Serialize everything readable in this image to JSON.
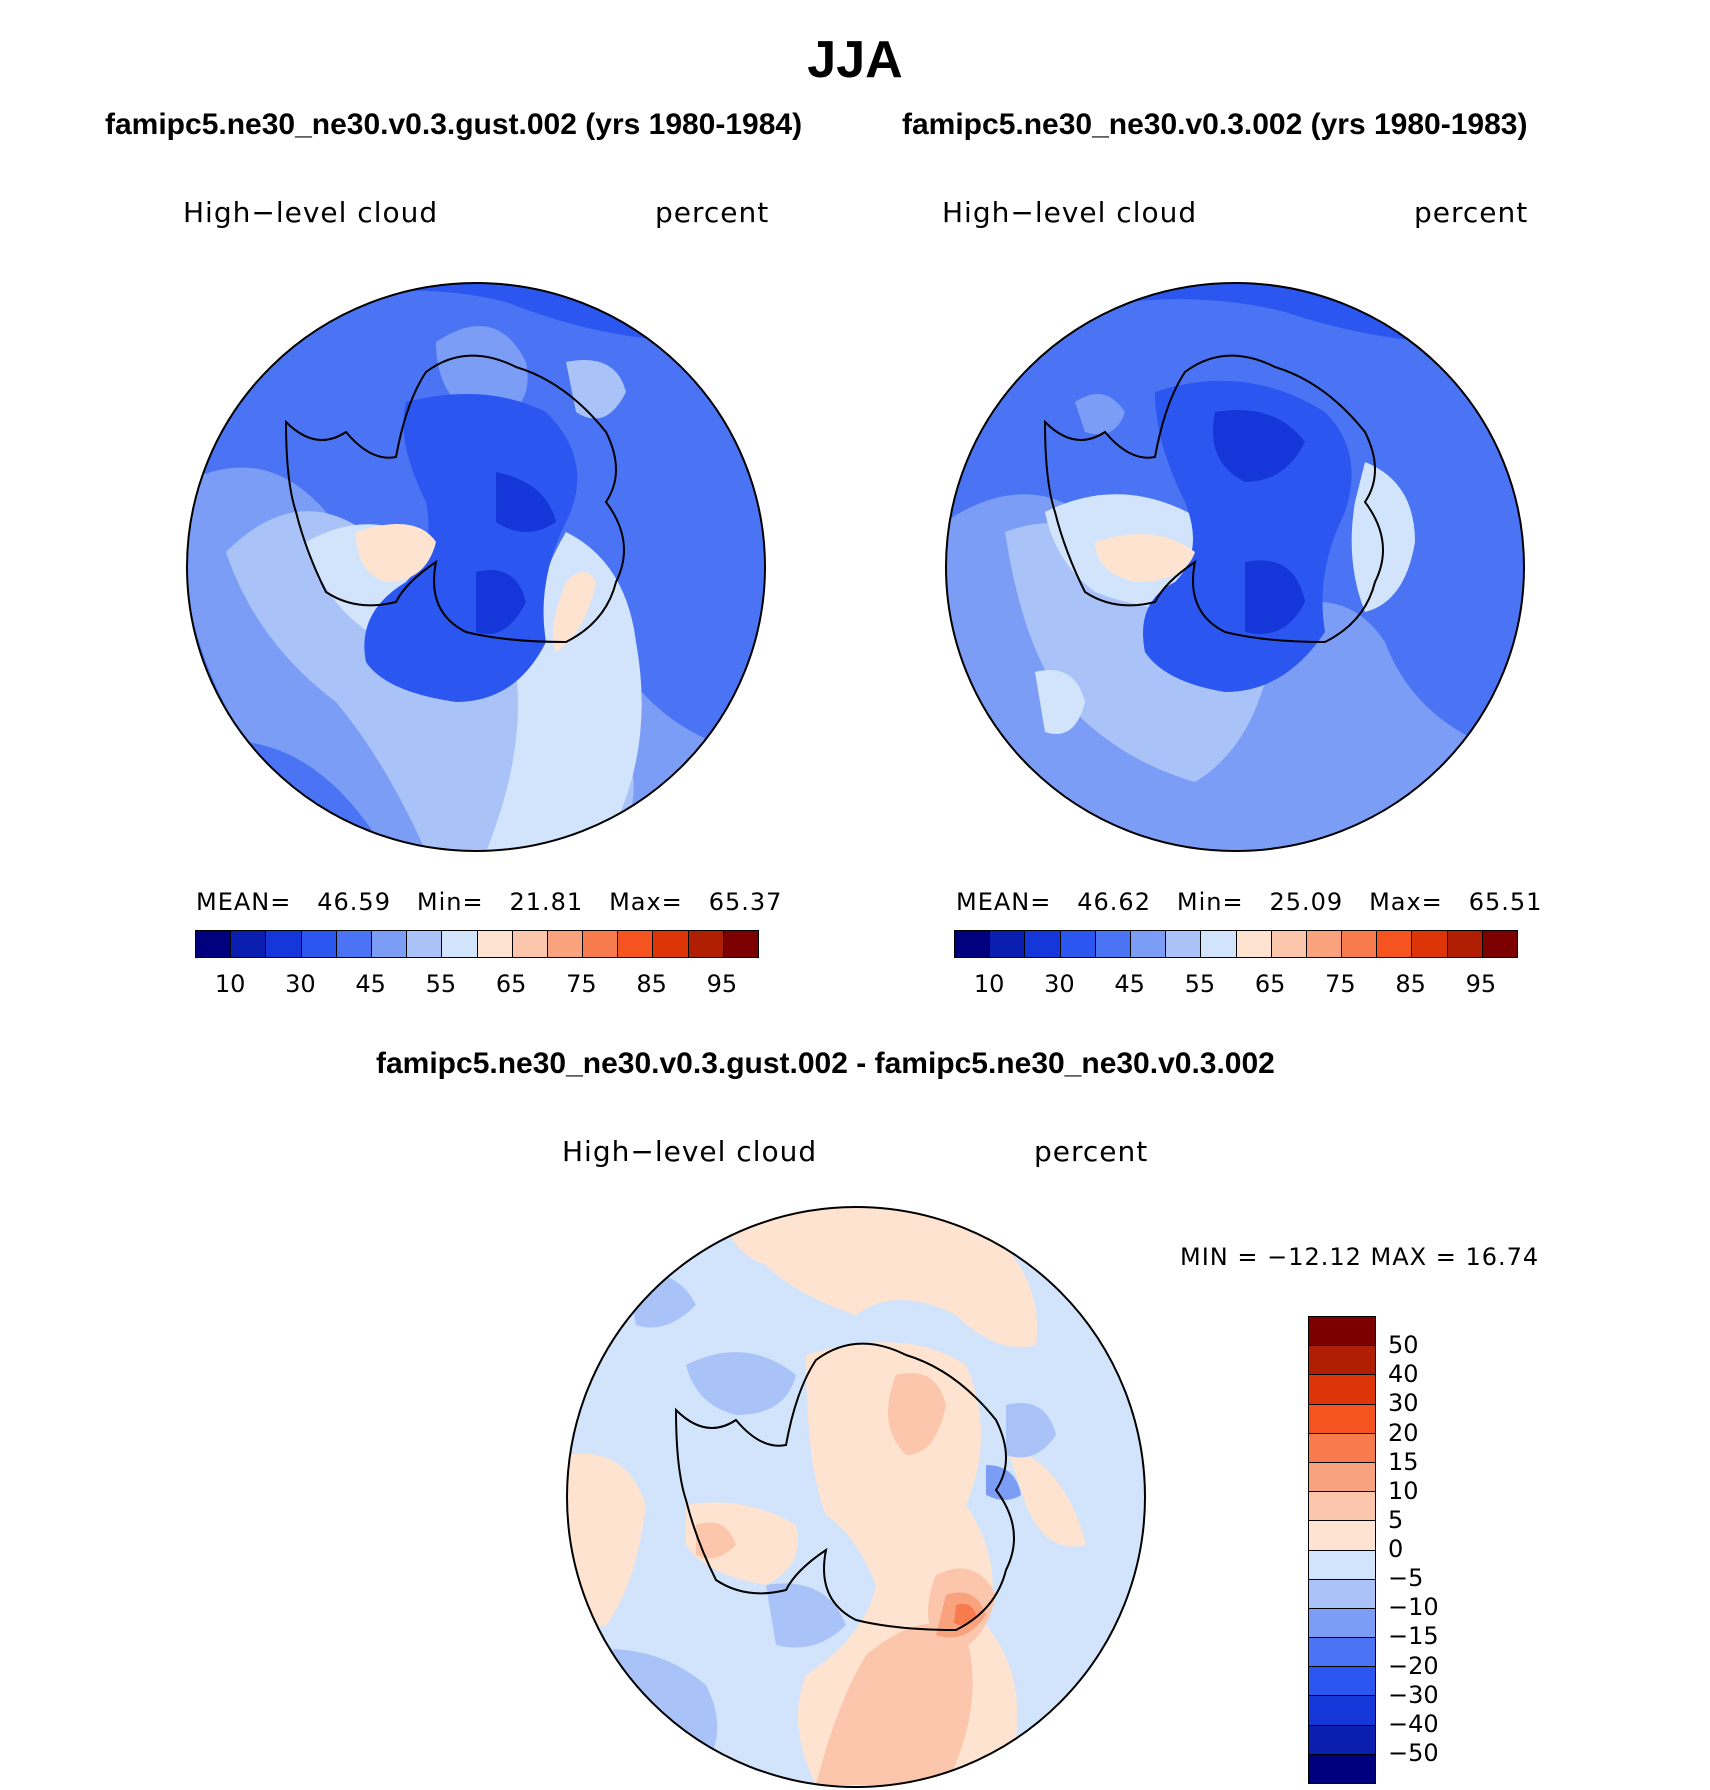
{
  "title": "JJA",
  "panels": [
    {
      "title": "famipc5.ne30_ne30.v0.3.gust.002 (yrs 1980-1984)",
      "variable": "High−level cloud",
      "units": "percent",
      "stats": {
        "mean_label": "MEAN=",
        "mean": "46.59",
        "min_label": "Min=",
        "min": "21.81",
        "max_label": "Max=",
        "max": "65.37"
      }
    },
    {
      "title": "famipc5.ne30_ne30.v0.3.002 (yrs 1980-1983)",
      "variable": "High−level cloud",
      "units": "percent",
      "stats": {
        "mean_label": "MEAN=",
        "mean": "46.62",
        "min_label": "Min=",
        "min": "25.09",
        "max_label": "Max=",
        "max": "65.51"
      }
    }
  ],
  "colorbar": {
    "colors": [
      "#00007f",
      "#0a1fb0",
      "#1536d8",
      "#2b56ef",
      "#4a74f3",
      "#7b9df6",
      "#a9c2f8",
      "#d2e4fb",
      "#fde3d0",
      "#fbc6ab",
      "#f9a27e",
      "#f77b4d",
      "#f5531f",
      "#dd3508",
      "#b01e04",
      "#7c0000"
    ],
    "tick_labels": [
      "10",
      "30",
      "45",
      "55",
      "65",
      "75",
      "85",
      "95"
    ]
  },
  "diff": {
    "title": "famipc5.ne30_ne30.v0.3.gust.002 - famipc5.ne30_ne30.v0.3.002",
    "variable": "High−level cloud",
    "units": "percent",
    "stats_text": "MIN = −12.12 MAX =   16.74",
    "colorbar": {
      "colors": [
        "#7c0000",
        "#b01e04",
        "#dd3508",
        "#f5531f",
        "#f77b4d",
        "#f9a27e",
        "#fbc6ab",
        "#fde3d0",
        "#d2e4fb",
        "#a9c2f8",
        "#7b9df6",
        "#4a74f3",
        "#2b56ef",
        "#1536d8",
        "#0a1fb0",
        "#00007f"
      ],
      "tick_labels": [
        "50",
        "40",
        "30",
        "20",
        "15",
        "10",
        "5",
        "0",
        "−5",
        "−10",
        "−15",
        "−20",
        "−30",
        "−40",
        "−50"
      ]
    }
  },
  "map_colors": {
    "deep": "#2b56ef",
    "mid": "#4a74f3",
    "light": "#7b9df6",
    "pale": "#a9c2f8",
    "paler": "#d2e4fb",
    "peach": "#fde3d0",
    "salmon": "#fbc6ab",
    "orange": "#f9a27e",
    "dark_orange": "#f77b4d",
    "navy": "#1536d8"
  }
}
